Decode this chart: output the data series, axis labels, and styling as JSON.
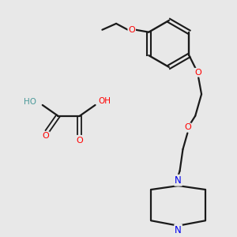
{
  "background_color": "#e8e8e8",
  "bond_color": "#1a1a1a",
  "oxygen_color": "#ff0000",
  "nitrogen_color": "#0000ee",
  "hydrogen_color": "#4a9999",
  "figsize": [
    3.0,
    3.0
  ],
  "dpi": 100,
  "xlim": [
    0,
    300
  ],
  "ylim": [
    0,
    300
  ]
}
